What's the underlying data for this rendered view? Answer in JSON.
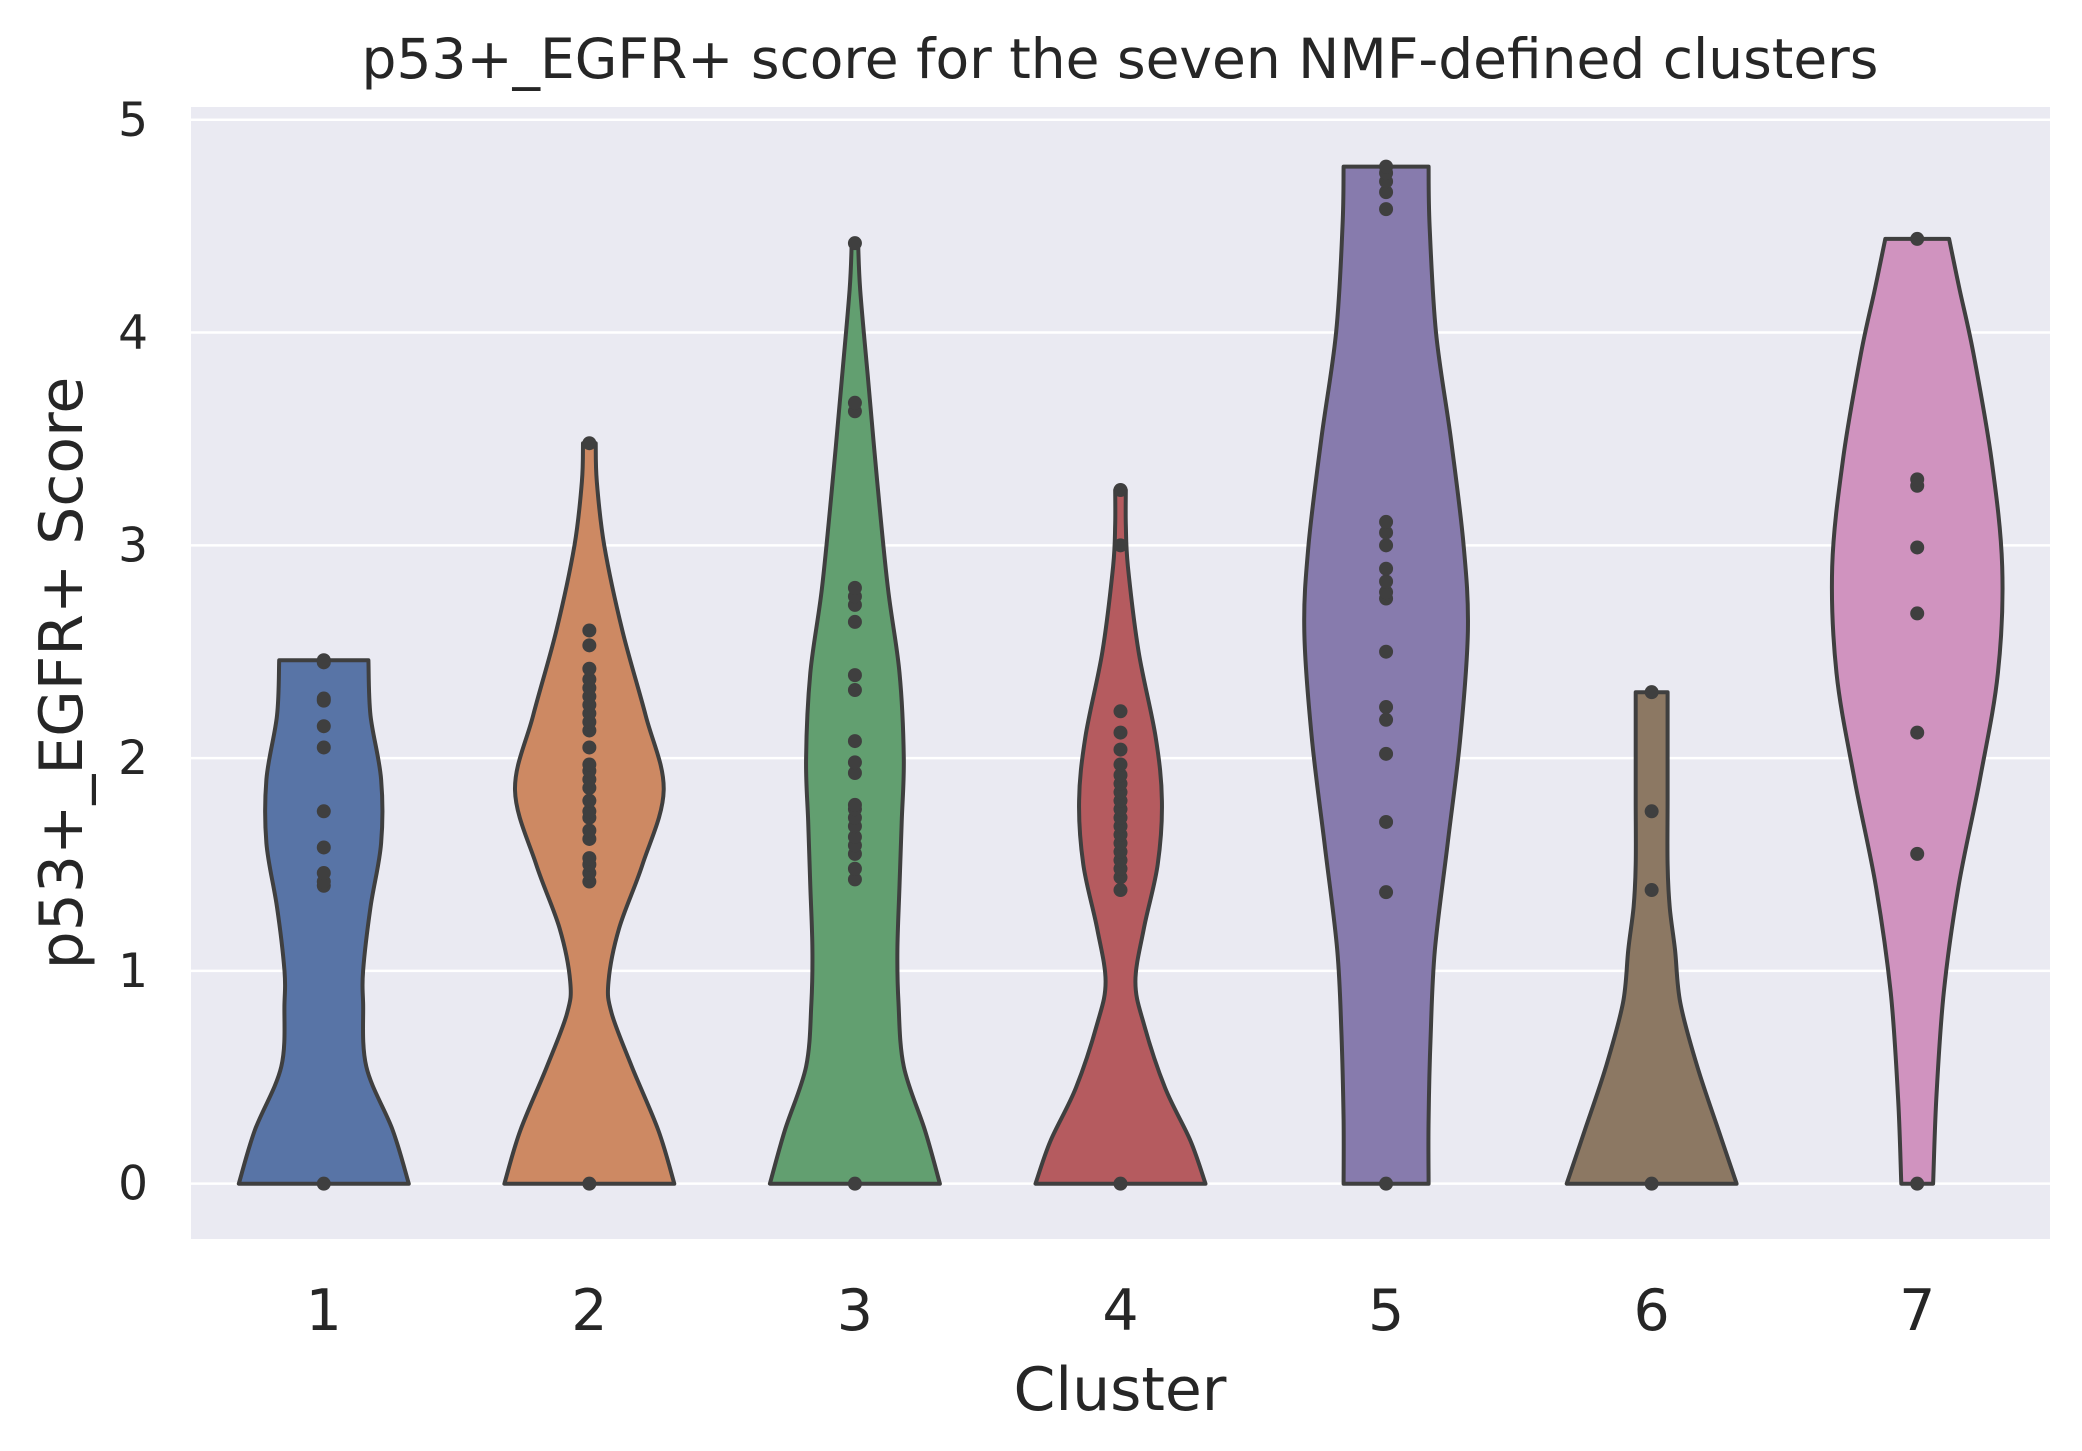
{
  "chart_data": {
    "type": "violin",
    "title": "p53+_EGFR+ score for the seven NMF-defined clusters",
    "xlabel": "Cluster",
    "ylabel": "p53+_EGFR+ Score",
    "ylim": [
      -0.26,
      5.06
    ],
    "yticks": [
      "0",
      "1",
      "2",
      "3",
      "4",
      "5"
    ],
    "grid": true,
    "categories": [
      "1",
      "2",
      "3",
      "4",
      "5",
      "6",
      "7"
    ],
    "colors": [
      "#5874a6",
      "#cd8963",
      "#629f70",
      "#b55b5f",
      "#877bad",
      "#8c7863",
      "#d093bf"
    ],
    "edge_color": "#3f3f3f",
    "background_color": "#eaeaf2",
    "series": [
      {
        "values": [
          0,
          1.4,
          1.42,
          1.46,
          1.58,
          1.75,
          2.05,
          2.15,
          2.27,
          2.28,
          2.45,
          2.46
        ],
        "density": [
          [
            0,
            0.8
          ],
          [
            0.25,
            0.65
          ],
          [
            0.55,
            0.4
          ],
          [
            0.85,
            0.37
          ],
          [
            1.0,
            0.37
          ],
          [
            1.3,
            0.44
          ],
          [
            1.6,
            0.54
          ],
          [
            1.9,
            0.54
          ],
          [
            2.2,
            0.44
          ],
          [
            2.46,
            0.42
          ]
        ]
      },
      {
        "values": [
          0,
          1.42,
          1.46,
          1.5,
          1.53,
          1.62,
          1.66,
          1.72,
          1.75,
          1.8,
          1.86,
          1.9,
          1.94,
          1.97,
          2.05,
          2.13,
          2.17,
          2.21,
          2.25,
          2.29,
          2.33,
          2.37,
          2.42,
          2.53,
          2.6,
          3.48
        ],
        "density": [
          [
            0,
            0.8
          ],
          [
            0.25,
            0.65
          ],
          [
            0.55,
            0.4
          ],
          [
            0.8,
            0.21
          ],
          [
            0.95,
            0.18
          ],
          [
            1.2,
            0.28
          ],
          [
            1.5,
            0.5
          ],
          [
            1.85,
            0.7
          ],
          [
            2.2,
            0.53
          ],
          [
            2.6,
            0.31
          ],
          [
            3.0,
            0.14
          ],
          [
            3.3,
            0.07
          ],
          [
            3.48,
            0.06
          ]
        ]
      },
      {
        "values": [
          0,
          1.43,
          1.48,
          1.55,
          1.59,
          1.63,
          1.68,
          1.72,
          1.76,
          1.78,
          1.93,
          1.98,
          2.08,
          2.32,
          2.39,
          2.64,
          2.72,
          2.76,
          2.8,
          3.63,
          3.67,
          4.42
        ],
        "density": [
          [
            0,
            0.8
          ],
          [
            0.25,
            0.66
          ],
          [
            0.55,
            0.46
          ],
          [
            0.85,
            0.41
          ],
          [
            1.1,
            0.4
          ],
          [
            1.4,
            0.42
          ],
          [
            1.7,
            0.44
          ],
          [
            2.0,
            0.46
          ],
          [
            2.4,
            0.42
          ],
          [
            2.8,
            0.31
          ],
          [
            3.3,
            0.21
          ],
          [
            3.8,
            0.12
          ],
          [
            4.2,
            0.05
          ],
          [
            4.42,
            0.03
          ]
        ]
      },
      {
        "values": [
          0,
          1.38,
          1.44,
          1.48,
          1.52,
          1.56,
          1.6,
          1.64,
          1.68,
          1.72,
          1.76,
          1.8,
          1.84,
          1.88,
          1.92,
          1.97,
          2.04,
          2.12,
          2.22,
          3.0,
          3.26
        ],
        "density": [
          [
            0,
            0.8
          ],
          [
            0.2,
            0.66
          ],
          [
            0.45,
            0.42
          ],
          [
            0.75,
            0.22
          ],
          [
            0.95,
            0.14
          ],
          [
            1.2,
            0.22
          ],
          [
            1.5,
            0.35
          ],
          [
            1.8,
            0.39
          ],
          [
            2.1,
            0.33
          ],
          [
            2.5,
            0.17
          ],
          [
            2.9,
            0.07
          ],
          [
            3.1,
            0.05
          ],
          [
            3.26,
            0.05
          ]
        ]
      },
      {
        "values": [
          0,
          1.37,
          1.7,
          2.02,
          2.18,
          2.24,
          2.5,
          2.75,
          2.78,
          2.83,
          2.89,
          3.0,
          3.06,
          3.11,
          4.58,
          4.66,
          4.71,
          4.75,
          4.78
        ],
        "density": [
          [
            0,
            0.4
          ],
          [
            0.3,
            0.4
          ],
          [
            0.7,
            0.42
          ],
          [
            1.1,
            0.46
          ],
          [
            1.6,
            0.58
          ],
          [
            2.1,
            0.7
          ],
          [
            2.6,
            0.77
          ],
          [
            3.0,
            0.73
          ],
          [
            3.5,
            0.61
          ],
          [
            4.0,
            0.47
          ],
          [
            4.5,
            0.41
          ],
          [
            4.78,
            0.4
          ]
        ]
      },
      {
        "values": [
          0,
          1.38,
          1.75,
          2.31
        ],
        "density": [
          [
            0,
            0.8
          ],
          [
            0.25,
            0.63
          ],
          [
            0.55,
            0.43
          ],
          [
            0.85,
            0.27
          ],
          [
            1.1,
            0.22
          ],
          [
            1.3,
            0.17
          ],
          [
            1.5,
            0.15
          ],
          [
            1.8,
            0.15
          ],
          [
            2.1,
            0.15
          ],
          [
            2.31,
            0.15
          ]
        ]
      },
      {
        "values": [
          0,
          1.55,
          2.12,
          2.68,
          2.99,
          3.28,
          3.31,
          4.44
        ],
        "density": [
          [
            0,
            0.15
          ],
          [
            0.4,
            0.18
          ],
          [
            0.9,
            0.25
          ],
          [
            1.4,
            0.39
          ],
          [
            1.9,
            0.59
          ],
          [
            2.4,
            0.76
          ],
          [
            2.9,
            0.8
          ],
          [
            3.4,
            0.7
          ],
          [
            3.9,
            0.53
          ],
          [
            4.2,
            0.4
          ],
          [
            4.44,
            0.3
          ]
        ]
      }
    ]
  }
}
